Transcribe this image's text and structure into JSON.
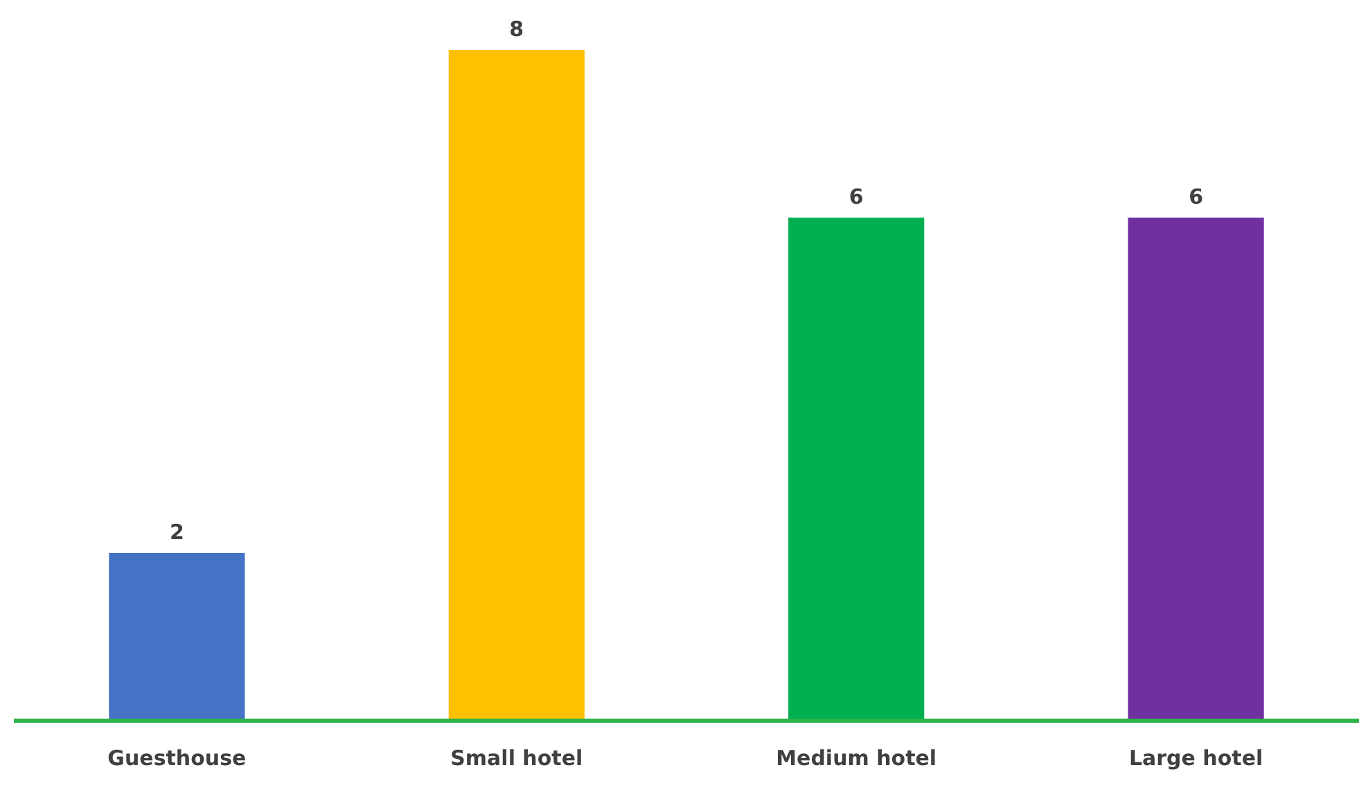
{
  "chart_data": {
    "type": "bar",
    "categories": [
      "Guesthouse",
      "Small hotel",
      "Medium hotel",
      "Large hotel"
    ],
    "values": [
      2,
      8,
      6,
      6
    ],
    "colors": [
      "#4472c4",
      "#ffc000",
      "#00b050",
      "#7030a0"
    ],
    "data_labels": true
  }
}
